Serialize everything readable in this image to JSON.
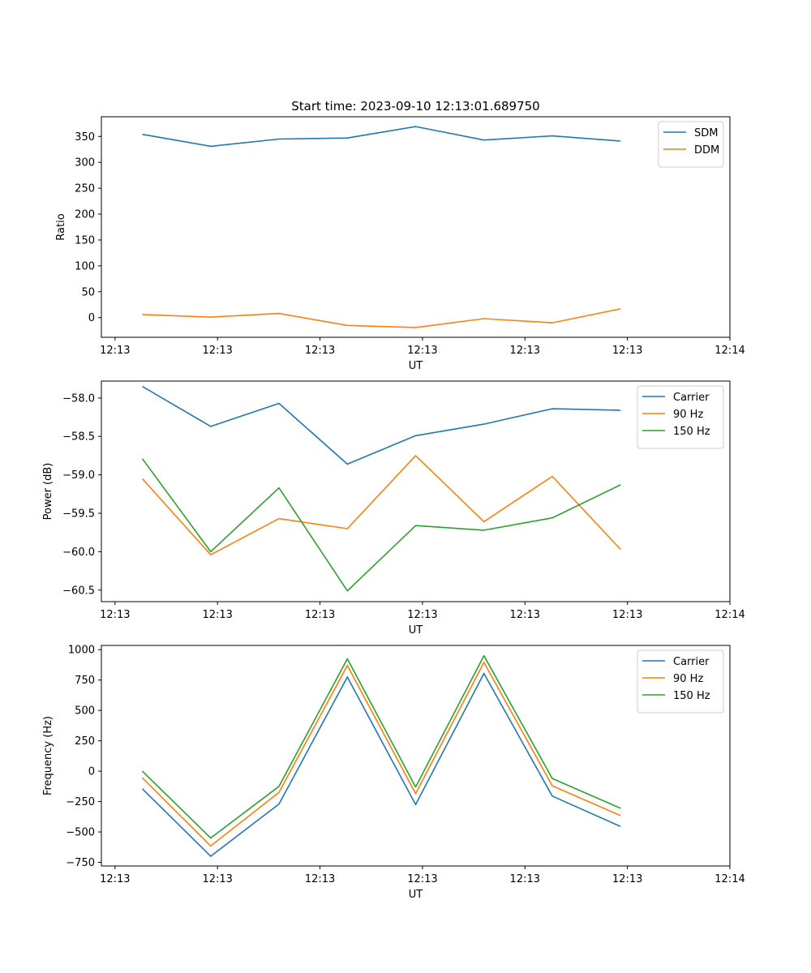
{
  "title": "Start time: 2023-09-10 12:13:01.689750",
  "chart_data": [
    {
      "type": "line",
      "title": "Start time: 2023-09-10 12:13:01.689750",
      "xlabel": "UT",
      "ylabel": "Ratio",
      "x_tick_labels": [
        "12:13",
        "12:13",
        "12:13",
        "12:13",
        "12:13",
        "12:13",
        "12:14"
      ],
      "x": [
        1,
        2,
        3,
        4,
        5,
        6,
        7,
        8
      ],
      "xlim": [
        0.4,
        9.6
      ],
      "x_ticks": [
        0.6,
        2.1,
        3.6,
        5.1,
        6.6,
        8.1,
        9.6
      ],
      "ylim": [
        -38,
        388
      ],
      "y_ticks": [
        0,
        50,
        100,
        150,
        200,
        250,
        300,
        350
      ],
      "y_tick_labels": [
        "0",
        "50",
        "100",
        "150",
        "200",
        "250",
        "300",
        "350"
      ],
      "legend_position": "top-right",
      "series": [
        {
          "name": "SDM",
          "color": "#1f77b4",
          "values": [
            354,
            331,
            345,
            347,
            369,
            343,
            351,
            341
          ]
        },
        {
          "name": "DDM",
          "color": "#ff7f0e",
          "values": [
            6,
            1,
            8,
            -15,
            -19,
            -2,
            -10,
            17
          ]
        }
      ]
    },
    {
      "type": "line",
      "title": "",
      "xlabel": "UT",
      "ylabel": "Power (dB)",
      "x_tick_labels": [
        "12:13",
        "12:13",
        "12:13",
        "12:13",
        "12:13",
        "12:13",
        "12:14"
      ],
      "x": [
        1,
        2,
        3,
        4,
        5,
        6,
        7,
        8
      ],
      "xlim": [
        0.4,
        9.6
      ],
      "x_ticks": [
        0.6,
        2.1,
        3.6,
        5.1,
        6.6,
        8.1,
        9.6
      ],
      "ylim": [
        -60.65,
        -57.78
      ],
      "y_ticks": [
        -60.5,
        -60.0,
        -59.5,
        -59.0,
        -58.5,
        -58.0
      ],
      "y_tick_labels": [
        "−60.5",
        "−60.0",
        "−59.5",
        "−59.0",
        "−58.5",
        "−58.0"
      ],
      "legend_position": "top-right",
      "series": [
        {
          "name": "Carrier",
          "color": "#1f77b4",
          "values": [
            -57.85,
            -58.37,
            -58.07,
            -58.86,
            -58.49,
            -58.34,
            -58.14,
            -58.16
          ]
        },
        {
          "name": "90 Hz",
          "color": "#ff7f0e",
          "values": [
            -59.05,
            -60.04,
            -59.57,
            -59.7,
            -58.75,
            -59.61,
            -59.02,
            -59.97
          ]
        },
        {
          "name": "150 Hz",
          "color": "#2ca02c",
          "values": [
            -58.79,
            -60.0,
            -59.17,
            -60.51,
            -59.66,
            -59.72,
            -59.56,
            -59.13
          ]
        }
      ]
    },
    {
      "type": "line",
      "title": "",
      "xlabel": "UT",
      "ylabel": "Frequency (Hz)",
      "x_tick_labels": [
        "12:13",
        "12:13",
        "12:13",
        "12:13",
        "12:13",
        "12:13",
        "12:14"
      ],
      "x": [
        1,
        2,
        3,
        4,
        5,
        6,
        7,
        8
      ],
      "xlim": [
        0.4,
        9.6
      ],
      "x_ticks": [
        0.6,
        2.1,
        3.6,
        5.1,
        6.6,
        8.1,
        9.6
      ],
      "ylim": [
        -780,
        1035
      ],
      "y_ticks": [
        -750,
        -500,
        -250,
        0,
        250,
        500,
        750,
        1000
      ],
      "y_tick_labels": [
        "−750",
        "−500",
        "−250",
        "0",
        "250",
        "500",
        "750",
        "1000"
      ],
      "legend_position": "top-right",
      "series": [
        {
          "name": "Carrier",
          "color": "#1f77b4",
          "values": [
            -145,
            -700,
            -270,
            775,
            -275,
            805,
            -205,
            -455
          ]
        },
        {
          "name": "90 Hz",
          "color": "#ff7f0e",
          "values": [
            -55,
            -615,
            -175,
            870,
            -185,
            895,
            -120,
            -365
          ]
        },
        {
          "name": "150 Hz",
          "color": "#2ca02c",
          "values": [
            0,
            -550,
            -125,
            925,
            -130,
            950,
            -60,
            -305
          ]
        }
      ]
    }
  ]
}
